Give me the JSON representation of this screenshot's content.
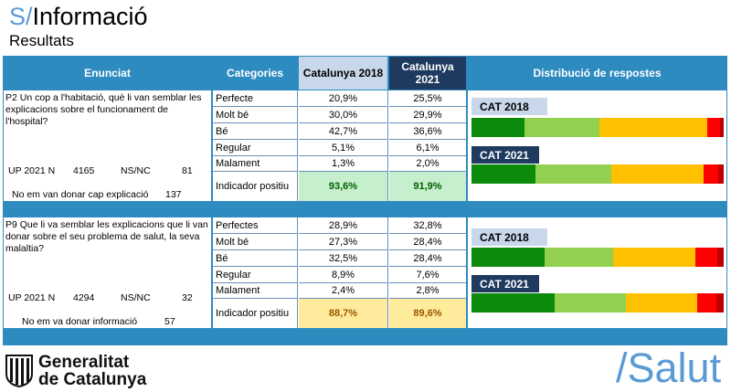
{
  "header": {
    "slash": "S/",
    "title": "Informació",
    "subtitle": "Resultats"
  },
  "columns": {
    "enunciat": "Enunciat",
    "categories": "Categories",
    "cat2018": "Catalunya 2018",
    "cat2021": "Catalunya 2021",
    "distribucio": "Distribució de respostes"
  },
  "questions": [
    {
      "text": "P2 Un cop a l'habitació, què li van semblar les explicacions sobre el funcionament de l'hospital?",
      "up_label": "UP 2021 N",
      "n": "4165",
      "nsnc_label": "NS/NC",
      "nsnc": "81",
      "note": "No em van donar cap explicació",
      "note_value": "137",
      "rows": [
        {
          "label": "Perfecte",
          "v2018": "20,9%",
          "v2021": "25,5%"
        },
        {
          "label": "Molt bé",
          "v2018": "30,0%",
          "v2021": "29,9%"
        },
        {
          "label": "Bé",
          "v2018": "42,7%",
          "v2021": "36,6%"
        },
        {
          "label": "Regular",
          "v2018": "5,1%",
          "v2021": "6,1%"
        },
        {
          "label": "Malament",
          "v2018": "1,3%",
          "v2021": "2,0%"
        }
      ],
      "indicator": {
        "label": "Indicador positiu",
        "v2018": "93,6%",
        "v2021": "91,9%"
      },
      "bars": [
        {
          "tag": "CAT 2018",
          "values": [
            20.9,
            30.0,
            42.7,
            5.1,
            1.3
          ]
        },
        {
          "tag": "CAT 2021",
          "values": [
            25.5,
            29.9,
            36.6,
            6.1,
            2.0
          ]
        }
      ]
    },
    {
      "text": "P9 Que li va semblar les explicacions que li van donar sobre el seu problema de salut, la seva malaltia?",
      "up_label": "UP 2021 N",
      "n": "4294",
      "nsnc_label": "NS/NC",
      "nsnc": "32",
      "note": "No em va donar informació",
      "note_value": "57",
      "rows": [
        {
          "label": "Perfectes",
          "v2018": "28,9%",
          "v2021": "32,8%"
        },
        {
          "label": "Molt bé",
          "v2018": "27,3%",
          "v2021": "28,4%"
        },
        {
          "label": "Bé",
          "v2018": "32,5%",
          "v2021": "28,4%"
        },
        {
          "label": "Regular",
          "v2018": "8,9%",
          "v2021": "7,6%"
        },
        {
          "label": "Malament",
          "v2018": "2,4%",
          "v2021": "2,8%"
        }
      ],
      "indicator": {
        "label": "Indicador positiu",
        "v2018": "88,7%",
        "v2021": "89,6%"
      },
      "bars": [
        {
          "tag": "CAT 2018",
          "values": [
            28.9,
            27.3,
            32.5,
            8.9,
            2.4
          ]
        },
        {
          "tag": "CAT 2021",
          "values": [
            32.8,
            28.4,
            28.4,
            7.6,
            2.8
          ]
        }
      ]
    }
  ],
  "colors": {
    "segments": [
      "#0b8a0b",
      "#92d050",
      "#ffc000",
      "#ff0000",
      "#c00000"
    ],
    "indicator_green_bg": "#c6efce",
    "indicator_green_fg": "#006100",
    "indicator_yellow_bg": "#ffeb9c",
    "indicator_yellow_fg": "#9c5700"
  },
  "footer": {
    "brand_line1": "Generalitat",
    "brand_line2": "de Catalunya",
    "salut": "/Salut"
  }
}
